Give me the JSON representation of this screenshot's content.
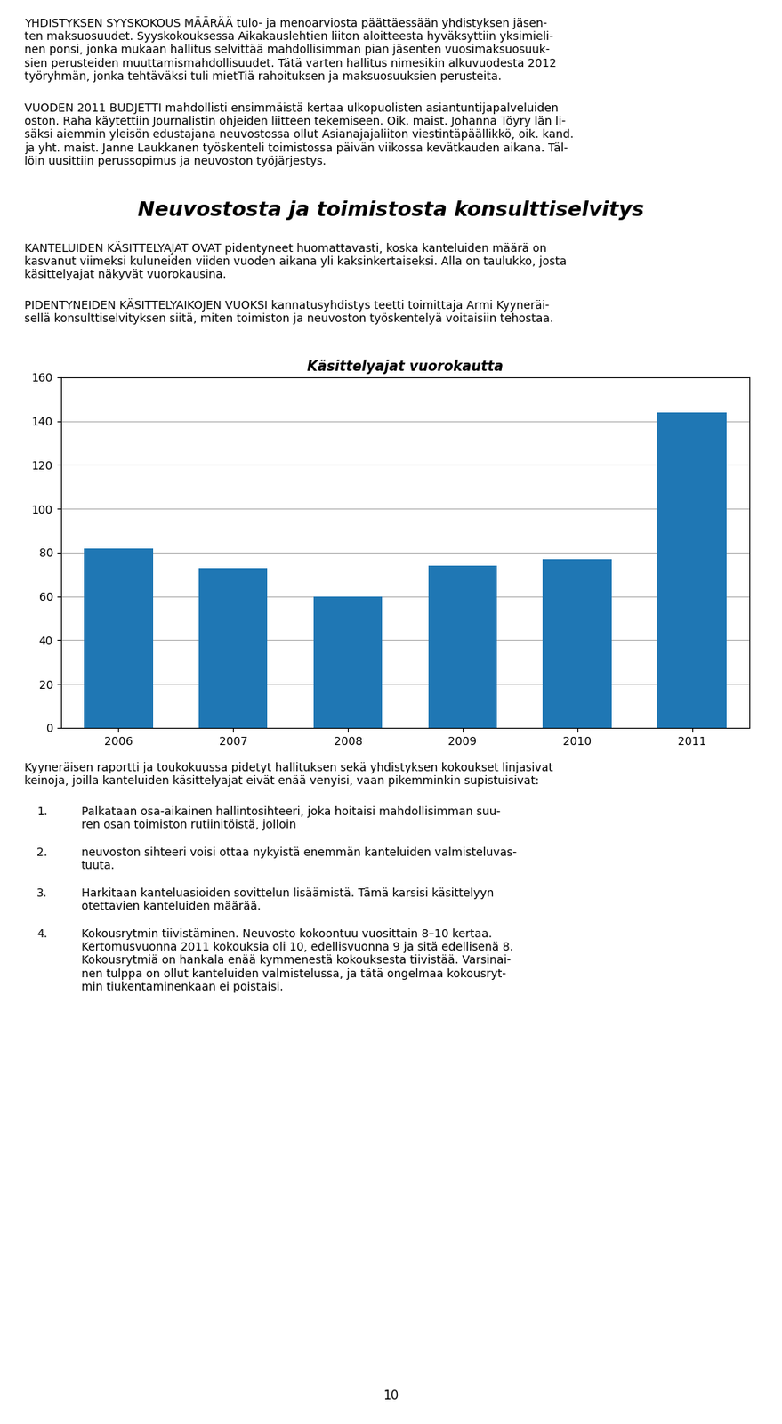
{
  "chart_data": {
    "type": "bar",
    "title": "Käsittelyajat vuorokautta",
    "categories": [
      "2006",
      "2007",
      "2008",
      "2009",
      "2010",
      "2011"
    ],
    "values": [
      82,
      73,
      60,
      74,
      77,
      144
    ],
    "ylim": [
      0,
      160
    ],
    "yticks": [
      0,
      20,
      40,
      60,
      80,
      100,
      120,
      140,
      160
    ],
    "grid": true,
    "annotations": [
      "YHDISTYKSEN SYYSKOKOUS MÄÄRÄÄ tulo- ja menoarviosta päättäessään yhdistyksen jäsen-\nten maksuosuudet. Syyskokouksessa Aikakauslehtien liiton aloitteesta hyväksyttiin yksimieli-\nnen ponsi, jonka mukaan hallitus selvittää mahdollisimman pian jäsenten vuosimaksuosuuk-\nsien perusteiden muuttamismahdollisuudet. Tätä varten hallitus nimesikin alkuvuodesta 2012\ntyöryhmän, jonka tehtäväksi tuli mietTiä rahoituksen ja maksuosuuksien perusteita.",
      "VUODEN 2011 BUDJETTI mahdollisti ensimmäistä kertaa ulkopuolisten asiantuntijapalveluiden\noston. Raha käytettiin Journalistin ohjeiden liitteen tekemiseen. Oik. maist. Johanna Töyry län li-\nsäksi aiemmin yleisön edustajana neuvostossa ollut Asianajajaliiton viestintäpäällikkö, oik. kand.\nja yht. maist. Janne Laukkanen työskenteli toimistossa päivän viikossa kevätkauden aikana. Täl-\nlöin uusittiin perussopimus ja neuvoston työjärjestys.",
      "Neuvostosta ja toimistosta konsulttiselvitys",
      "KANTELUIDEN KÄSITTELYAJAT OVAT pidentyneet huomattavasti, koska kanteluiden määrä on\nkasvanut viimeksi kuluneiden viiden vuoden aikana yli kaksinkertaiseksi. Alla on taulukko, josta\nkäsittelyajat näkyvät vuorokausina.",
      "PIDENTYNEIDEN KÄSITTELYAIKOJEN VUOKSI kannatusyhdistys teetti toimittaja Armi Kyyneräi-\nsellä konsulttiselvityksen siitä, miten toimiston ja neuvoston työskentelyä voitaisiin tehostaa.",
      "Kyyneräisen raportti ja toukokuussa pidetyt hallituksen sekä yhdistyksen kokoukset linjasivat\nkeinoja, joilla kanteluiden käsittelyajat eivät enää venyisi, vaan pikemminkin supistuisivat:",
      "1.",
      "Palkataan osa-aikainen hallintosihteeri, joka hoitaisi mahdollisimman suu-\nren osan toimiston rutiinitöistä, jolloin",
      "2.",
      "neuvoston sihteeri voisi ottaa nykyistä enemmän kanteluiden valmisteluvas-\ntuuta.",
      "3.",
      "Harkitaan kanteluasioiden sovittelun lisäämistä. Tämä karsisi käsittelyyn\notettavien kanteluiden määrää.",
      "4.",
      "Kokousrytmin tiivistäminen. Neuvosto kokoontuu vuosittain 8–10 kertaa.\nKertomusvuonna 2011 kokouksia oli 10, edellisvuonna 9 ja sitä edellisenä 8.\nKokousrytmiä on hankala enää kymmenestä kokouksesta tiivistää. Varsinai-\nnen tulppa on ollut kanteluiden valmistelussa, ja tätä ongelmaa kokousryt-\nmin tiukentaminenkaan ei poistaisi.",
      "10"
    ]
  }
}
